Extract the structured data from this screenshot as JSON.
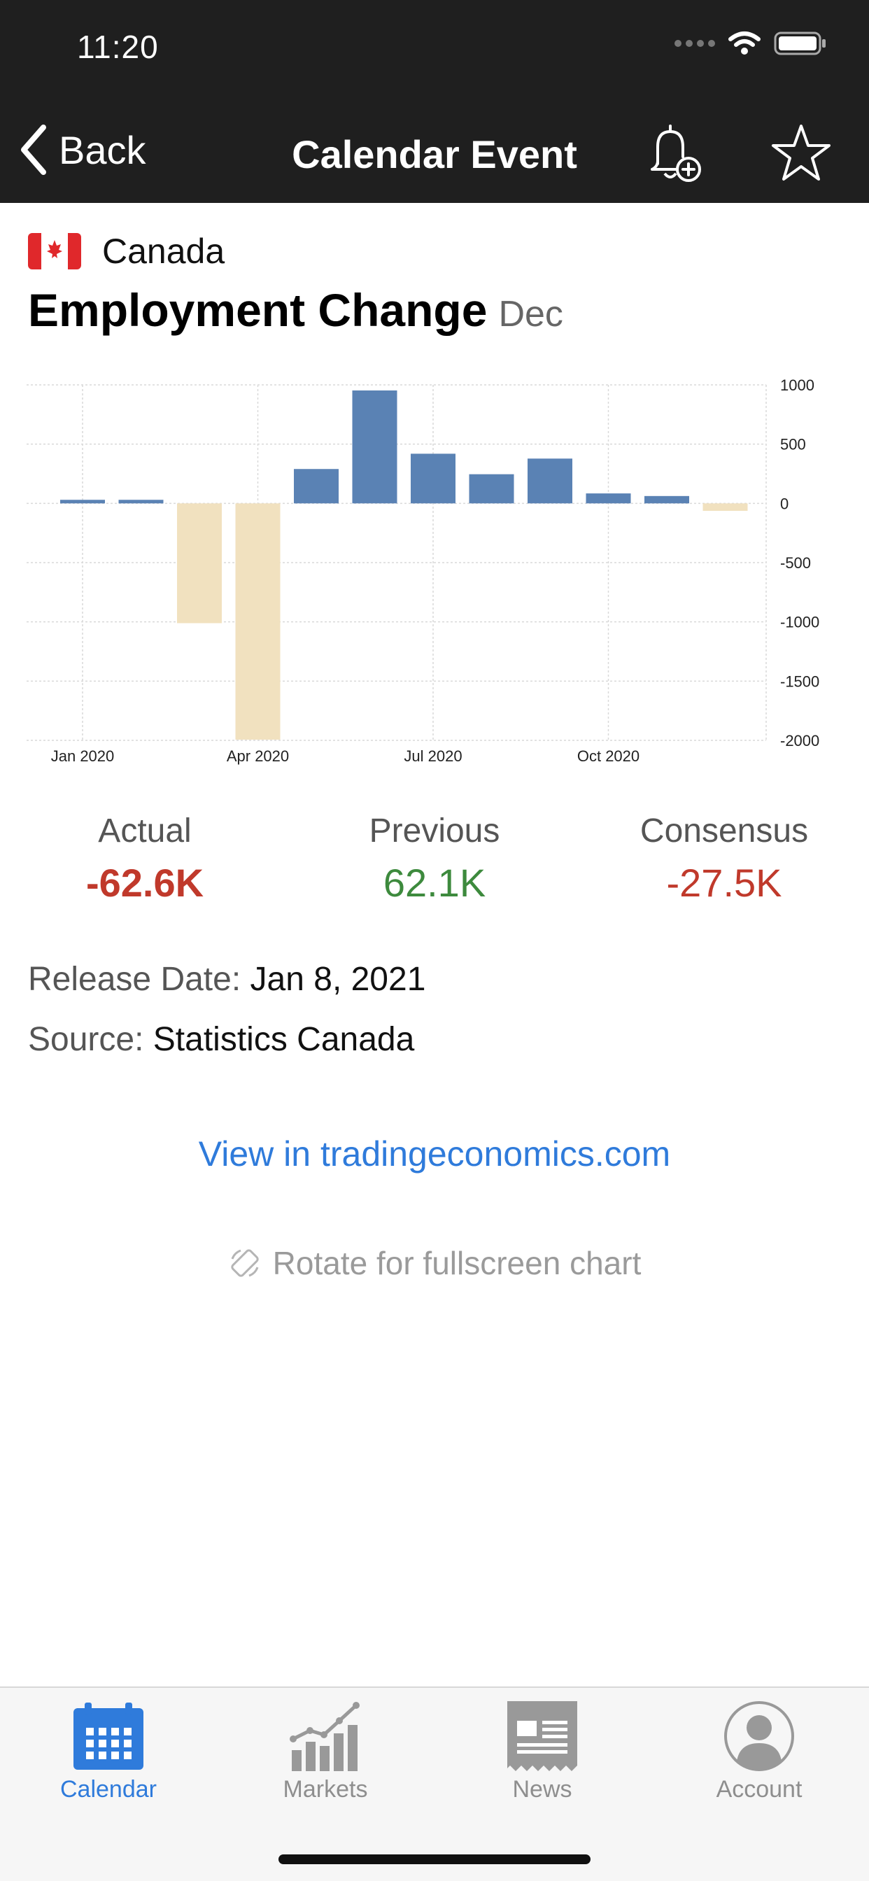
{
  "status_bar": {
    "time": "11:20"
  },
  "nav": {
    "back_label": "Back",
    "title": "Calendar Event"
  },
  "event": {
    "country": "Canada",
    "name": "Employment Change",
    "period": "Dec"
  },
  "chart_data": {
    "type": "bar",
    "categories": [
      "Jan 2020",
      "Feb 2020",
      "Mar 2020",
      "Apr 2020",
      "May 2020",
      "Jun 2020",
      "Jul 2020",
      "Aug 2020",
      "Sep 2020",
      "Oct 2020",
      "Nov 2020",
      "Dec 2020"
    ],
    "values": [
      30,
      30,
      -1011,
      -1994,
      290,
      953,
      419,
      246,
      378,
      84,
      62,
      -63
    ],
    "x_tick_labels": [
      "Jan 2020",
      "Apr 2020",
      "Jul 2020",
      "Oct 2020"
    ],
    "y_ticks": [
      1000,
      500,
      0,
      -500,
      -1000,
      -1500,
      -2000
    ],
    "ylim": [
      -2000,
      1000
    ],
    "y_axis_side": "right",
    "grid": true,
    "positive_color": "#5a82b4",
    "negative_color": "#f1e1bf"
  },
  "stats": [
    {
      "label": "Actual",
      "value": "-62.6K",
      "color": "#c0392b"
    },
    {
      "label": "Previous",
      "value": "62.1K",
      "color": "#3d8a3d"
    },
    {
      "label": "Consensus",
      "value": "-27.5K",
      "color": "#c0392b"
    }
  ],
  "release": {
    "label": "Release Date:",
    "value": "Jan 8, 2021"
  },
  "source": {
    "label": "Source:",
    "value": "Statistics Canada"
  },
  "link_text": "View in tradingeconomics.com",
  "rotate_hint": "Rotate for fullscreen chart",
  "tabs": [
    {
      "label": "Calendar",
      "icon": "calendar-icon",
      "active": true
    },
    {
      "label": "Markets",
      "icon": "markets-chart-icon",
      "active": false
    },
    {
      "label": "News",
      "icon": "newspaper-icon",
      "active": false
    },
    {
      "label": "Account",
      "icon": "account-avatar-icon",
      "active": false
    }
  ],
  "colors": {
    "accent": "#2f7bdb",
    "header_bg": "#1f1f1f"
  }
}
